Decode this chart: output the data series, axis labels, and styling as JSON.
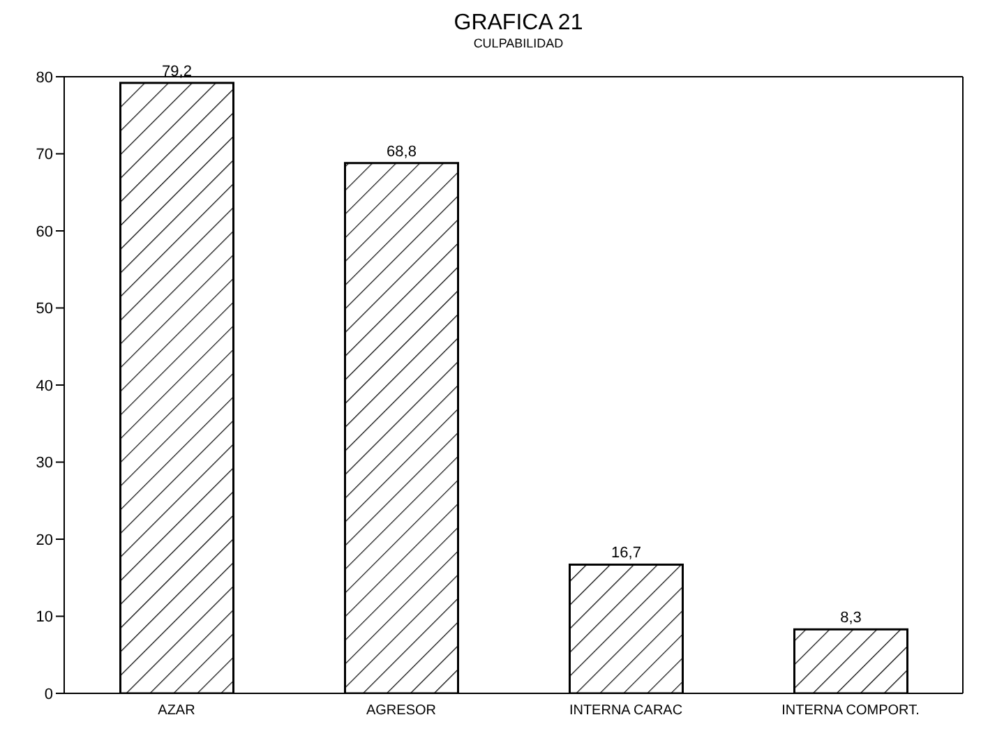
{
  "chart_data": {
    "type": "bar",
    "title": "GRAFICA 21",
    "subtitle": "CULPABILIDAD",
    "categories": [
      "AZAR",
      "AGRESOR",
      "INTERNA CARAC",
      "INTERNA COMPORT."
    ],
    "values": [
      79.2,
      68.8,
      16.7,
      8.3
    ],
    "value_labels": [
      "79,2",
      "68,8",
      "16,7",
      "8,3"
    ],
    "color": "#000000",
    "ylim": [
      0,
      80
    ],
    "yticks": [
      0,
      10,
      20,
      30,
      40,
      50,
      60,
      70,
      80
    ],
    "grid": false
  }
}
